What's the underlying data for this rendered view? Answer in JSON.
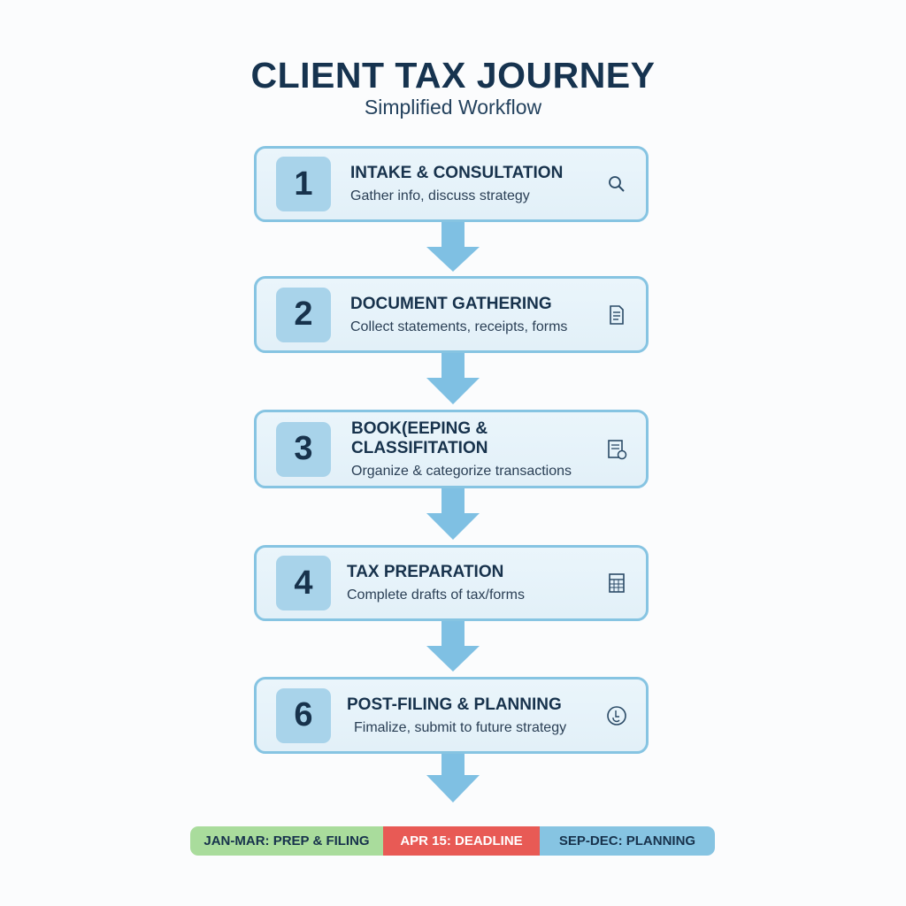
{
  "header": {
    "title": "CLIENT TAX JOURNEY",
    "subtitle": "Simplified Workflow"
  },
  "steps": [
    {
      "number": "1",
      "title": "INTAKE & CONSULTATION",
      "description": "Gather info, discuss strategy",
      "icon": "magnifier-icon"
    },
    {
      "number": "2",
      "title": "DOCUMENT GATHERING",
      "description": "Collect statements, receipts, forms",
      "icon": "document-icon"
    },
    {
      "number": "3",
      "title": "BOOK(EEPING & CLASSIFITATION",
      "description": "Organize & categorize transactions",
      "icon": "ledger-icon"
    },
    {
      "number": "4",
      "title": "TAX PREPARATION",
      "description": "Complete drafts of tax/forms",
      "icon": "calculator-icon"
    },
    {
      "number": "6",
      "title": "POST-FILING & PLANNING",
      "description": "Fimalize, submit to future strategy",
      "icon": "circle-badge-icon"
    }
  ],
  "timeline": [
    {
      "label": "JAN-MAR: PREP & FILING",
      "color": "#a9dc9c"
    },
    {
      "label": "APR 15: DEADLINE",
      "color": "#e85a55"
    },
    {
      "label": "SEP-DEC: PLANNING",
      "color": "#86c4e2"
    }
  ],
  "colors": {
    "card_border": "#86c4e2",
    "arrow": "#7fc0e3",
    "text": "#17324c"
  }
}
